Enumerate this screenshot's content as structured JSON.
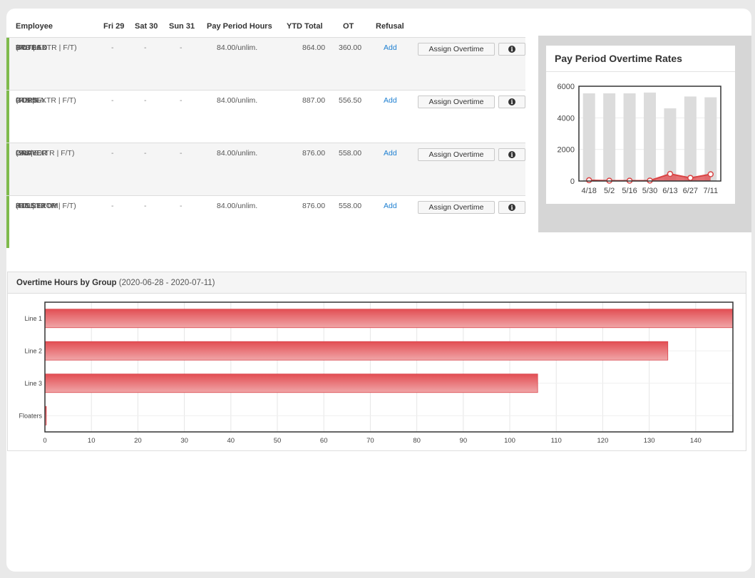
{
  "table": {
    "headers": [
      "Employee",
      "Fri 29",
      "Sat 30",
      "Sun 31",
      "Pay Period Hours",
      "YTD Total",
      "OT",
      "Refusal"
    ],
    "rows": [
      {
        "first": "TRUDA",
        "last": "BOTEAD",
        "tags": "(FLT | EXTR | F/T)",
        "pts": "PTS 66",
        "fri": "-",
        "sat": "-",
        "sun": "-",
        "pay": "84.00/unlim.",
        "ytd": "864.00",
        "ot": "360.00",
        "refusal": "Add",
        "assign": "Assign Overtime"
      },
      {
        "first": "ROBINA",
        "last": "GORS",
        "tags": "(FIN | EXTR | F/T)",
        "pts": "PTS 0",
        "fri": "-",
        "sat": "-",
        "sun": "-",
        "pay": "84.00/unlim.",
        "ytd": "887.00",
        "ot": "556.50",
        "refusal": "Add",
        "assign": "Assign Overtime"
      },
      {
        "first": "LAW",
        "last": "GRAYER",
        "tags": "(SU | EXTR | F/T)",
        "pts": "PTS 0",
        "fri": "-",
        "sat": "-",
        "sun": "-",
        "pay": "84.00/unlim.",
        "ytd": "876.00",
        "ot": "558.00",
        "refusal": "Add",
        "assign": "Assign Overtime"
      },
      {
        "first": "JUDE",
        "last": "HULSTROM",
        "tags": "(FIN | EXTR | F/T)",
        "pts": "PTS 288",
        "fri": "-",
        "sat": "-",
        "sun": "-",
        "pay": "84.00/unlim.",
        "ytd": "876.00",
        "ot": "558.00",
        "refusal": "Add",
        "assign": "Assign Overtime"
      }
    ],
    "info_icon": "info-circle-icon"
  },
  "rate_panel": {
    "title": "Pay Period Overtime Rates"
  },
  "group_panel": {
    "title": "Overtime Hours by Group",
    "range": "(2020-06-28 - 2020-07-11)"
  },
  "colors": {
    "accent_link": "#1d7fd1",
    "status_bar": "#7fba4c",
    "bar_red": "#e0575b",
    "bar_gray": "#dcdcdc"
  },
  "chart_data": [
    {
      "type": "bar",
      "title": "Pay Period Overtime Rates",
      "categories": [
        "4/18",
        "5/2",
        "5/16",
        "5/30",
        "6/13",
        "6/27",
        "7/11"
      ],
      "ylim": [
        0,
        6000
      ],
      "yticks": [
        0,
        2000,
        4000,
        6000
      ],
      "series": [
        {
          "kind": "bar",
          "values": [
            5550,
            5550,
            5550,
            5600,
            4600,
            5350,
            5300
          ]
        },
        {
          "kind": "line",
          "values": [
            50,
            20,
            20,
            30,
            450,
            200,
            430
          ]
        }
      ]
    },
    {
      "type": "bar",
      "orientation": "horizontal",
      "title": "Overtime Hours by Group",
      "categories": [
        "Line 1",
        "Line 2",
        "Line 3",
        "Floaters"
      ],
      "values": [
        148,
        134,
        106,
        0.3
      ],
      "xlim": [
        0,
        148
      ],
      "xticks": [
        0,
        10,
        20,
        30,
        40,
        50,
        60,
        70,
        80,
        90,
        100,
        110,
        120,
        130,
        140
      ]
    }
  ]
}
